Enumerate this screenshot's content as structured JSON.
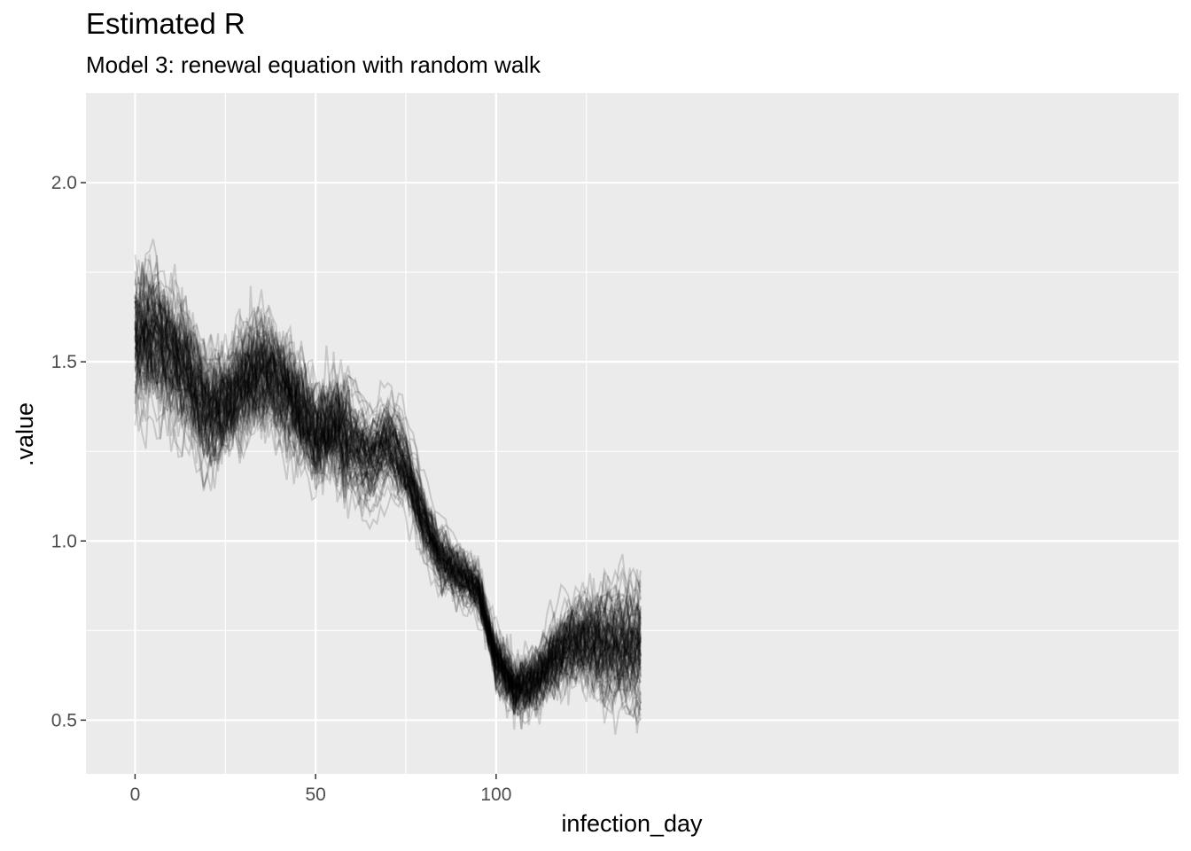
{
  "title": "Estimated R",
  "subtitle": "Model 3: renewal equation with random walk",
  "chart_data": {
    "type": "line",
    "title": "Estimated R",
    "subtitle": "Model 3: renewal equation with random walk",
    "xlabel": "infection_day",
    "ylabel": ".value",
    "xlim": [
      -13.6,
      289
    ],
    "ylim": [
      0.35,
      2.25
    ],
    "x_ticks": [
      0,
      50,
      100
    ],
    "x_tick_labels": [
      "0",
      "50",
      "100"
    ],
    "y_ticks": [
      0.5,
      1.0,
      1.5,
      2.0
    ],
    "y_tick_labels": [
      "0.5",
      "1.0",
      "1.5",
      "2.0"
    ],
    "grid": true,
    "legend": "none",
    "num_draws": 100,
    "line_color": "#000000",
    "line_opacity": 0.15,
    "background": "#ebebeb",
    "gridline_color": "#ffffff",
    "median_trajectory": {
      "x": [
        0,
        5,
        10,
        15,
        20,
        25,
        30,
        35,
        40,
        45,
        50,
        55,
        60,
        65,
        70,
        75,
        80,
        85,
        90,
        95,
        100,
        105,
        110,
        115,
        120,
        125,
        130,
        135,
        140
      ],
      "y": [
        1.56,
        1.57,
        1.52,
        1.44,
        1.36,
        1.37,
        1.43,
        1.47,
        1.44,
        1.37,
        1.29,
        1.32,
        1.27,
        1.22,
        1.27,
        1.2,
        1.05,
        0.94,
        0.9,
        0.86,
        0.67,
        0.59,
        0.6,
        0.66,
        0.71,
        0.72,
        0.71,
        0.7,
        0.7
      ]
    }
  }
}
